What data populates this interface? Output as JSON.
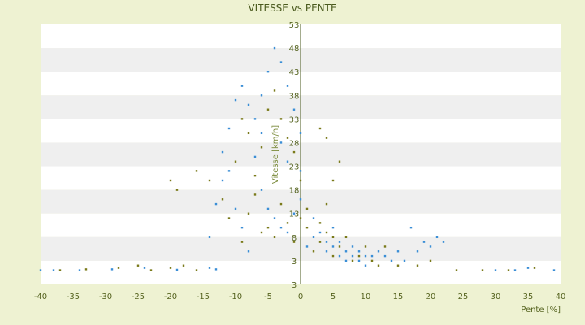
{
  "chart_data": {
    "type": "scatter",
    "title": "VITESSE vs PENTE",
    "xlabel": "Pente [%]",
    "ylabel": "Vitesse [km/h]",
    "xlim": [
      -40,
      40
    ],
    "ylim": [
      -2,
      53
    ],
    "x_ticks": [
      "-40",
      "-35",
      "-30",
      "-25",
      "-20",
      "-15",
      "-10",
      "-5",
      "0",
      "5",
      "10",
      "15",
      "20",
      "25",
      "30",
      "35",
      "40"
    ],
    "y_ticks": [
      "3",
      "3",
      "8",
      "13",
      "18",
      "23",
      "28",
      "33",
      "38",
      "43",
      "48",
      "53"
    ],
    "grid": "horizontal alternating bands",
    "legend": "none",
    "series": [
      {
        "color": "#3a8ed6",
        "marker": "dot",
        "points": [
          [
            -40,
            1
          ],
          [
            -38,
            1
          ],
          [
            -34,
            1
          ],
          [
            -29,
            1.2
          ],
          [
            -24,
            1.5
          ],
          [
            -19,
            1.1
          ],
          [
            -14,
            1.5
          ],
          [
            -13,
            1.2
          ],
          [
            -14,
            8
          ],
          [
            -13,
            15
          ],
          [
            -12,
            20
          ],
          [
            -12,
            26
          ],
          [
            -11,
            31
          ],
          [
            -10,
            37
          ],
          [
            -9,
            40
          ],
          [
            -8,
            36
          ],
          [
            -7,
            25
          ],
          [
            -6,
            30
          ],
          [
            -5,
            43
          ],
          [
            -4,
            48
          ],
          [
            -3,
            45
          ],
          [
            -2,
            40
          ],
          [
            -1,
            35
          ],
          [
            0,
            30
          ],
          [
            -6,
            18
          ],
          [
            -5,
            14
          ],
          [
            -4,
            12
          ],
          [
            -3,
            10
          ],
          [
            -2,
            9
          ],
          [
            -1,
            13
          ],
          [
            0,
            16
          ],
          [
            0,
            22
          ],
          [
            1,
            6
          ],
          [
            2,
            8
          ],
          [
            2,
            12
          ],
          [
            3,
            9
          ],
          [
            4,
            7
          ],
          [
            4,
            5
          ],
          [
            5,
            10
          ],
          [
            5,
            6
          ],
          [
            6,
            4
          ],
          [
            6,
            7
          ],
          [
            7,
            5
          ],
          [
            7,
            3
          ],
          [
            8,
            4
          ],
          [
            8,
            6
          ],
          [
            9,
            3
          ],
          [
            9,
            5
          ],
          [
            10,
            4
          ],
          [
            10,
            2
          ],
          [
            11,
            4
          ],
          [
            12,
            5
          ],
          [
            13,
            4
          ],
          [
            14,
            3
          ],
          [
            15,
            5
          ],
          [
            16,
            3
          ],
          [
            17,
            10
          ],
          [
            18,
            5
          ],
          [
            19,
            7
          ],
          [
            20,
            6
          ],
          [
            21,
            8
          ],
          [
            22,
            7
          ],
          [
            -8,
            5
          ],
          [
            -9,
            10
          ],
          [
            -10,
            14
          ],
          [
            -11,
            22
          ],
          [
            -7,
            33
          ],
          [
            -6,
            38
          ],
          [
            -3,
            28
          ],
          [
            -2,
            24
          ],
          [
            30,
            1
          ],
          [
            33,
            1
          ],
          [
            35,
            1.5
          ],
          [
            39,
            1
          ]
        ]
      },
      {
        "color": "#7a7a1a",
        "marker": "dot",
        "points": [
          [
            -37,
            1
          ],
          [
            -33,
            1.2
          ],
          [
            -28,
            1.5
          ],
          [
            -25,
            2
          ],
          [
            -23,
            1
          ],
          [
            -20,
            1.5
          ],
          [
            -18,
            2
          ],
          [
            -16,
            1
          ],
          [
            -20,
            20
          ],
          [
            -19,
            18
          ],
          [
            -16,
            22
          ],
          [
            -14,
            20
          ],
          [
            -12,
            16
          ],
          [
            -11,
            12
          ],
          [
            -10,
            24
          ],
          [
            -9,
            33
          ],
          [
            -8,
            30
          ],
          [
            -7,
            21
          ],
          [
            -6,
            27
          ],
          [
            -5,
            35
          ],
          [
            -4,
            39
          ],
          [
            -3,
            33
          ],
          [
            -2,
            29
          ],
          [
            -1,
            26
          ],
          [
            0,
            20
          ],
          [
            -5,
            10
          ],
          [
            -4,
            8
          ],
          [
            -3,
            15
          ],
          [
            -2,
            11
          ],
          [
            -1,
            7
          ],
          [
            1,
            10
          ],
          [
            1,
            14
          ],
          [
            2,
            5
          ],
          [
            3,
            11
          ],
          [
            3,
            7
          ],
          [
            4,
            9
          ],
          [
            5,
            4
          ],
          [
            5,
            8
          ],
          [
            6,
            6
          ],
          [
            7,
            8
          ],
          [
            8,
            3
          ],
          [
            9,
            4
          ],
          [
            10,
            6
          ],
          [
            11,
            3
          ],
          [
            12,
            2
          ],
          [
            13,
            6
          ],
          [
            15,
            2
          ],
          [
            18,
            2
          ],
          [
            20,
            3
          ],
          [
            24,
            1
          ],
          [
            28,
            1
          ],
          [
            32,
            1
          ],
          [
            36,
            1.5
          ],
          [
            -9,
            7
          ],
          [
            -8,
            13
          ],
          [
            -7,
            17
          ],
          [
            -6,
            9
          ],
          [
            0,
            12
          ],
          [
            4,
            15
          ],
          [
            5,
            20
          ],
          [
            6,
            24
          ],
          [
            4,
            29
          ],
          [
            3,
            31
          ]
        ]
      }
    ]
  }
}
